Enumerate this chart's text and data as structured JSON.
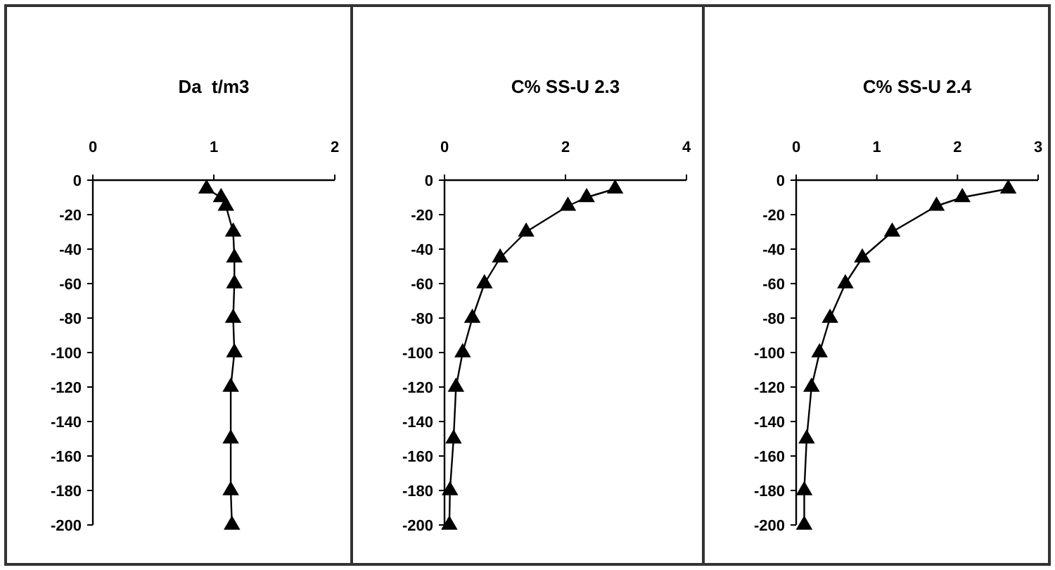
{
  "chart_data": [
    {
      "type": "line",
      "title": "Da  t/m3",
      "xlim": [
        0,
        2
      ],
      "xticks": [
        0,
        1,
        2
      ],
      "ylim": [
        -200,
        0
      ],
      "yticks": [
        0,
        -20,
        -40,
        -60,
        -80,
        -100,
        -120,
        -140,
        -160,
        -180,
        -200
      ],
      "marker": "triangle",
      "series": [
        {
          "color": "#000000",
          "x": [
            0.94,
            1.06,
            1.1,
            1.16,
            1.17,
            1.17,
            1.16,
            1.17,
            1.14,
            1.14,
            1.14,
            1.15
          ],
          "values": [
            -5,
            -10,
            -15,
            -30,
            -45,
            -60,
            -80,
            -100,
            -120,
            -150,
            -180,
            -200
          ]
        }
      ]
    },
    {
      "type": "line",
      "title": "C% SS-U 2.3",
      "xlim": [
        0,
        4
      ],
      "xticks": [
        0,
        2,
        4
      ],
      "ylim": [
        -200,
        0
      ],
      "yticks": [
        0,
        -20,
        -40,
        -60,
        -80,
        -100,
        -120,
        -140,
        -160,
        -180,
        -200
      ],
      "marker": "triangle",
      "series": [
        {
          "color": "#000000",
          "x": [
            2.82,
            2.35,
            2.04,
            1.35,
            0.92,
            0.66,
            0.46,
            0.3,
            0.19,
            0.15,
            0.09,
            0.08
          ],
          "values": [
            -5,
            -10,
            -15,
            -30,
            -45,
            -60,
            -80,
            -100,
            -120,
            -150,
            -180,
            -200
          ]
        }
      ]
    },
    {
      "type": "line",
      "title": "C% SS-U 2.4",
      "xlim": [
        0,
        3
      ],
      "xticks": [
        0,
        1,
        2,
        3
      ],
      "ylim": [
        -200,
        0
      ],
      "yticks": [
        0,
        -20,
        -40,
        -60,
        -80,
        -100,
        -120,
        -140,
        -160,
        -180,
        -200
      ],
      "marker": "triangle",
      "series": [
        {
          "color": "#000000",
          "x": [
            2.63,
            2.06,
            1.74,
            1.19,
            0.82,
            0.61,
            0.42,
            0.29,
            0.19,
            0.13,
            0.1,
            0.1
          ],
          "values": [
            -5,
            -10,
            -15,
            -30,
            -45,
            -60,
            -80,
            -100,
            -120,
            -150,
            -180,
            -200
          ]
        }
      ]
    }
  ]
}
